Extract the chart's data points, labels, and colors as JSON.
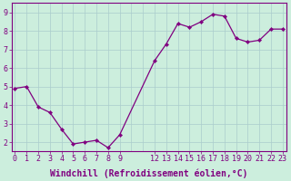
{
  "x": [
    0,
    1,
    2,
    3,
    4,
    5,
    6,
    7,
    8,
    9,
    12,
    13,
    14,
    15,
    16,
    17,
    18,
    19,
    20,
    21,
    22,
    23
  ],
  "y": [
    4.9,
    5.0,
    3.9,
    3.6,
    2.7,
    1.9,
    2.0,
    2.1,
    1.7,
    2.4,
    6.4,
    7.3,
    8.4,
    8.2,
    8.5,
    8.9,
    8.8,
    7.6,
    7.4,
    7.5,
    8.1,
    8.1
  ],
  "line_color": "#800080",
  "marker_color": "#800080",
  "bg_color": "#cceedd",
  "grid_color": "#aacccc",
  "tick_color": "#800080",
  "xlabel": "Windchill (Refroidissement éolien,°C)",
  "xlabel_color": "#800080",
  "ylabel_ticks": [
    2,
    3,
    4,
    5,
    6,
    7,
    8,
    9
  ],
  "xticks": [
    0,
    1,
    2,
    3,
    4,
    5,
    6,
    7,
    8,
    9,
    12,
    13,
    14,
    15,
    16,
    17,
    18,
    19,
    20,
    21,
    22,
    23
  ],
  "xlim": [
    -0.3,
    23.3
  ],
  "ylim": [
    1.5,
    9.5
  ],
  "spine_color": "#800080",
  "tick_fontsize": 6,
  "xlabel_fontsize": 7
}
